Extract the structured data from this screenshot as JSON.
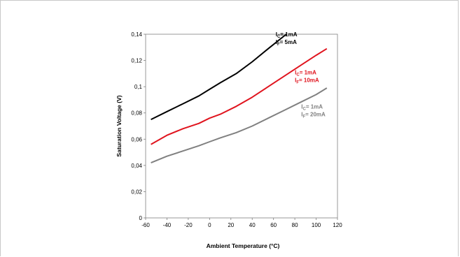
{
  "chart_data": {
    "type": "line",
    "title": "",
    "xlabel": "Ambient Temperature (°C)",
    "ylabel": "Saturation Voltage (V)",
    "xlim": [
      -60,
      120
    ],
    "ylim": [
      0,
      0.14
    ],
    "x_ticks": [
      -60,
      -40,
      -20,
      0,
      20,
      40,
      60,
      80,
      100,
      120
    ],
    "x_tick_labels": [
      "-60",
      "-40",
      "-20",
      "0",
      "20",
      "40",
      "60",
      "80",
      "100",
      "120"
    ],
    "y_ticks": [
      0,
      0.02,
      0.04,
      0.06,
      0.08,
      0.1,
      0.12,
      0.14
    ],
    "y_tick_labels": [
      "0",
      "0,02",
      "0,04",
      "0,06",
      "0,08",
      "0,1",
      "0,12",
      "0,14"
    ],
    "grid": true,
    "series": [
      {
        "color": "#000000",
        "label": {
          "ic_pre": "I",
          "ic_sub": "C",
          "ic_val": "= 1mA",
          "if_pre": "I",
          "if_sub": "F",
          "if_val": "= 5mA"
        },
        "label_at": [
          62,
          0.1385
        ],
        "x": [
          -55,
          -40,
          -25,
          -10,
          0,
          10,
          25,
          40,
          55,
          72
        ],
        "y": [
          0.075,
          0.081,
          0.087,
          0.093,
          0.098,
          0.103,
          0.11,
          0.119,
          0.129,
          0.14
        ]
      },
      {
        "color": "#e0141e",
        "label": {
          "ic_pre": "I",
          "ic_sub": "C",
          "ic_val": "= 1mA",
          "if_pre": "I",
          "if_sub": "F",
          "if_val": "= 10mA"
        },
        "label_at": [
          80,
          0.1095
        ],
        "x": [
          -55,
          -40,
          -25,
          -10,
          0,
          10,
          25,
          40,
          55,
          70,
          85,
          100,
          110
        ],
        "y": [
          0.056,
          0.063,
          0.068,
          0.072,
          0.076,
          0.079,
          0.085,
          0.092,
          0.1,
          0.108,
          0.116,
          0.124,
          0.129
        ]
      },
      {
        "color": "#808080",
        "label": {
          "ic_pre": "I",
          "ic_sub": "C",
          "ic_val": "= 1mA",
          "if_pre": "I",
          "if_sub": "F",
          "if_val": "= 20mA"
        },
        "label_at": [
          86,
          0.0832
        ],
        "x": [
          -55,
          -40,
          -25,
          -10,
          0,
          10,
          25,
          40,
          55,
          70,
          85,
          100,
          110
        ],
        "y": [
          0.042,
          0.047,
          0.051,
          0.055,
          0.058,
          0.061,
          0.065,
          0.07,
          0.076,
          0.082,
          0.088,
          0.094,
          0.099
        ]
      }
    ]
  }
}
